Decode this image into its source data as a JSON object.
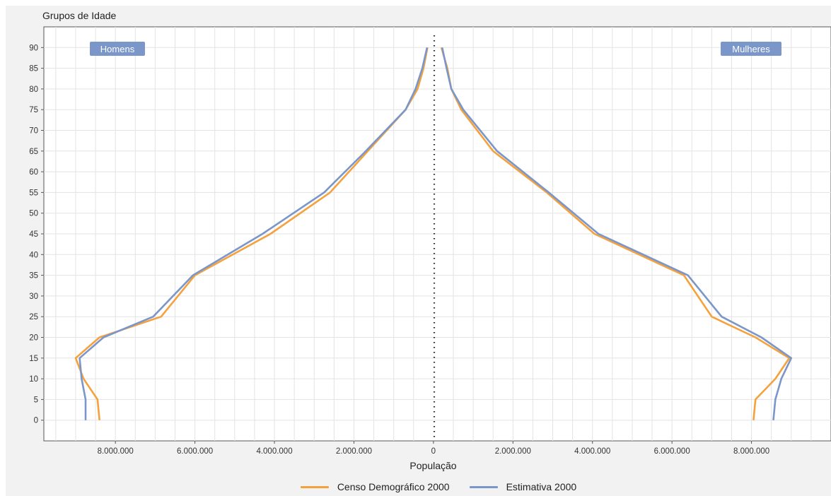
{
  "chart_data": {
    "type": "line",
    "title": "",
    "ylabel": "Grupos de Idade",
    "xlabel": "População",
    "age_groups": [
      0,
      5,
      10,
      15,
      20,
      25,
      35,
      45,
      55,
      65,
      75,
      80,
      85,
      90
    ],
    "yticks": [
      "0",
      "5",
      "10",
      "15",
      "20",
      "25",
      "30",
      "35",
      "40",
      "45",
      "50",
      "55",
      "60",
      "65",
      "70",
      "75",
      "80",
      "85",
      "90"
    ],
    "ylim": [
      -5,
      95
    ],
    "xlim": [
      -9800000,
      10000000
    ],
    "xticks_left": [
      "8.000.000",
      "6.000.000",
      "4.000.000",
      "2.000.000"
    ],
    "xticks_center": "0",
    "xticks_right": [
      "2.000.000",
      "4.000.000",
      "6.000.000",
      "8.000.000"
    ],
    "panel_labels": {
      "left": "Homens",
      "right": "Mulheres"
    },
    "series": [
      {
        "name": "Censo Demográfico 2000",
        "color": "#f5a23e",
        "men": [
          8400000,
          8450000,
          8800000,
          9000000,
          8400000,
          6850000,
          6000000,
          4100000,
          2600000,
          1650000,
          700000,
          400000,
          250000,
          150000
        ],
        "women": [
          8050000,
          8100000,
          8600000,
          8950000,
          8100000,
          7000000,
          6300000,
          4050000,
          2850000,
          1500000,
          700000,
          450000,
          350000,
          200000
        ]
      },
      {
        "name": "Estimativa 2000",
        "color": "#7b96c9",
        "men": [
          8750000,
          8750000,
          8850000,
          8900000,
          8300000,
          7050000,
          6050000,
          4300000,
          2750000,
          1700000,
          700000,
          450000,
          280000,
          160000
        ],
        "women": [
          8550000,
          8600000,
          8750000,
          9000000,
          8250000,
          7250000,
          6400000,
          4150000,
          2900000,
          1600000,
          750000,
          450000,
          330000,
          220000
        ]
      }
    ],
    "grid": true,
    "legend": "bottom"
  }
}
